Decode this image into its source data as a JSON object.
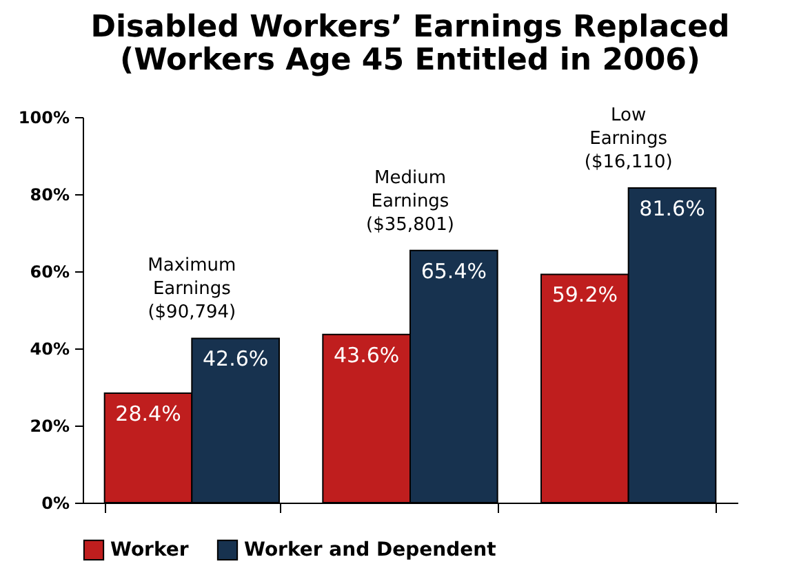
{
  "chart_data": {
    "type": "bar",
    "title": "Disabled Workers’ Earnings Replaced\n(Workers Age 45 Entitled in 2006)",
    "categories": [
      "Maximum\nEarnings\n($90,794)",
      "Medium\nEarnings\n($35,801)",
      "Low\nEarnings\n($16,110)"
    ],
    "series": [
      {
        "name": "Worker",
        "color": "#bf1e1e",
        "values": [
          28.4,
          43.6,
          59.2
        ],
        "value_labels": [
          "28.4%",
          "43.6%",
          "59.2%"
        ]
      },
      {
        "name": "Worker and Dependent",
        "color": "#17324f",
        "values": [
          42.6,
          65.4,
          81.6
        ],
        "value_labels": [
          "42.6%",
          "65.4%",
          "81.6%"
        ]
      }
    ],
    "ylim": [
      0,
      100
    ],
    "yticks": [
      {
        "value": 0,
        "label": "0%"
      },
      {
        "value": 20,
        "label": "20%"
      },
      {
        "value": 40,
        "label": "40%"
      },
      {
        "value": 60,
        "label": "60%"
      },
      {
        "value": 80,
        "label": "80%"
      },
      {
        "value": 100,
        "label": "100%"
      }
    ],
    "grid": false,
    "legend": "bottom"
  }
}
